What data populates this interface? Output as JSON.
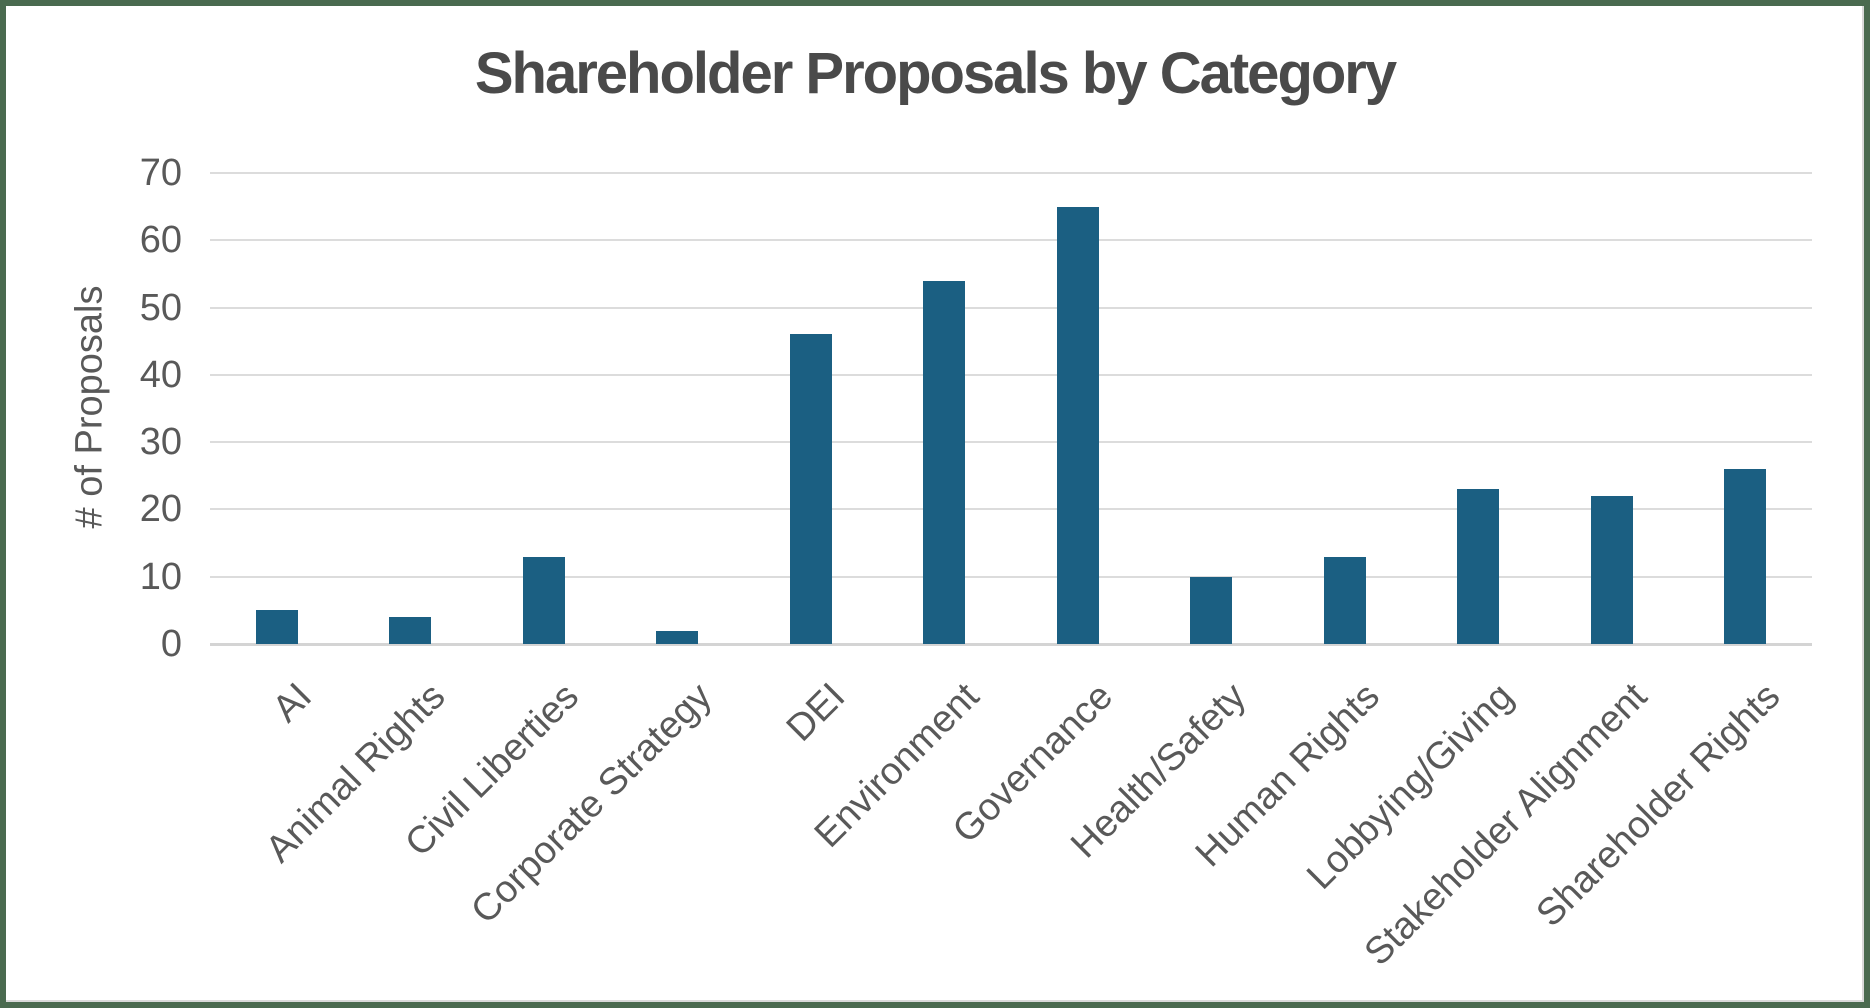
{
  "chart_data": {
    "type": "bar",
    "title": "Shareholder Proposals by Category",
    "xlabel": "",
    "ylabel": "# of Proposals",
    "categories": [
      "AI",
      "Animal Rights",
      "Civil Liberties",
      "Corporate Strategy",
      "DEI",
      "Environment",
      "Governance",
      "Health/Safety",
      "Human Rights",
      "Lobbying/Giving",
      "Stakeholder Alignment",
      "Shareholder Rights"
    ],
    "values": [
      5,
      4,
      13,
      2,
      46,
      54,
      65,
      10,
      13,
      23,
      22,
      26
    ],
    "ylim": [
      0,
      70
    ],
    "yticks": [
      0,
      10,
      20,
      30,
      40,
      50,
      60,
      70
    ],
    "grid": "horizontal",
    "legend": "none",
    "bar_color": "#1b5f82"
  },
  "colors": {
    "frame_border": "#4a6a4f",
    "frame_inner_edge": "#d9d9d9",
    "gridline": "#dcdcdc",
    "axis_line": "#d4d4d4",
    "title_text": "#4a4a4a",
    "axis_text": "#595959"
  }
}
